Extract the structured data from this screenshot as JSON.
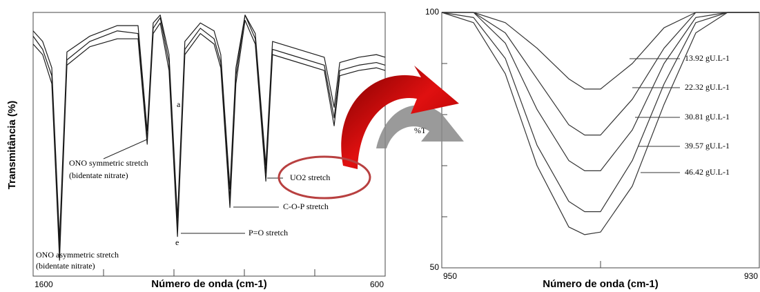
{
  "chart_data": [
    {
      "type": "line",
      "x_label": "Número de onda (cm-1)",
      "y_label": "Transmitância (%)",
      "xlim": [
        1600,
        600
      ],
      "ylim": [
        0,
        100
      ],
      "xticks": [
        1600,
        600
      ],
      "minor_xticks": [
        1400,
        1200,
        1000,
        800
      ],
      "x": [
        1600,
        1573,
        1547,
        1525,
        1504,
        1439,
        1361,
        1302,
        1276,
        1259,
        1239,
        1214,
        1190,
        1169,
        1125,
        1086,
        1067,
        1041,
        1024,
        998,
        969,
        939,
        920,
        871,
        773,
        745,
        729,
        675,
        625,
        600
      ],
      "series": [
        {
          "color": "#1a1a1a",
          "values": [
            91,
            86,
            76,
            10,
            82,
            89,
            93,
            92,
            52,
            94,
            98,
            81,
            18,
            86,
            94,
            90,
            81,
            29,
            76,
            99,
            90,
            39,
            86,
            84,
            80,
            60,
            78,
            80,
            81,
            80
          ]
        },
        {
          "color": "#1a1a1a",
          "values": [
            88,
            84,
            73,
            6,
            80,
            87,
            90,
            90,
            50,
            92,
            96,
            78,
            15,
            84,
            92,
            88,
            79,
            26,
            73,
            97,
            88,
            36,
            84,
            82,
            78,
            57,
            76,
            78,
            79,
            78
          ]
        },
        {
          "color": "#1a1a1a",
          "values": [
            93,
            89,
            79,
            14,
            85,
            91,
            95,
            95,
            55,
            96,
            99,
            84,
            22,
            89,
            96,
            93,
            84,
            33,
            79,
            99,
            92,
            42,
            89,
            87,
            83,
            64,
            81,
            83,
            84,
            83
          ]
        }
      ],
      "annotations": [
        "ONO symmetric stretch",
        "(bidentate nitrate)",
        "ONO asymmetric stretch",
        "(bidentate nitrate)",
        "UO2 stretch",
        "C-O-P stretch",
        "P=O stretch",
        "a",
        "e"
      ]
    },
    {
      "type": "line",
      "x_label": "Número de onda (cm-1)",
      "y_label": "%T",
      "xlim": [
        950,
        930
      ],
      "ylim": [
        50,
        100
      ],
      "xticks": [
        950,
        930
      ],
      "minor_xticks": [
        940
      ],
      "yticks": [
        100,
        50
      ],
      "minor_yticks": [
        90,
        80,
        70,
        60
      ],
      "x": [
        950,
        948,
        946,
        944,
        942,
        941,
        940,
        938,
        936,
        934,
        932,
        930
      ],
      "series": [
        {
          "name": "13.92 gU.L-1",
          "color": "#333333",
          "values": [
            100,
            100,
            98,
            93,
            87,
            85,
            85,
            90,
            97,
            100,
            100,
            100
          ]
        },
        {
          "name": "22.32 gU.L-1",
          "color": "#333333",
          "values": [
            100,
            100,
            96,
            87,
            78,
            76,
            76,
            83,
            93,
            100,
            100,
            100
          ]
        },
        {
          "name": "30.81 gU.L-1",
          "color": "#333333",
          "values": [
            100,
            100,
            94,
            81,
            71,
            69,
            69,
            77,
            90,
            99,
            100,
            100
          ]
        },
        {
          "name": "39.57 gU.L-1",
          "color": "#333333",
          "values": [
            100,
            99,
            91,
            74,
            63,
            61,
            61,
            71,
            86,
            98,
            100,
            100
          ]
        },
        {
          "name": "46.42 gU.L-1",
          "color": "#333333",
          "values": [
            100,
            98,
            88,
            70,
            58,
            56.5,
            57,
            66,
            82,
            96,
            100,
            100
          ]
        }
      ]
    }
  ]
}
